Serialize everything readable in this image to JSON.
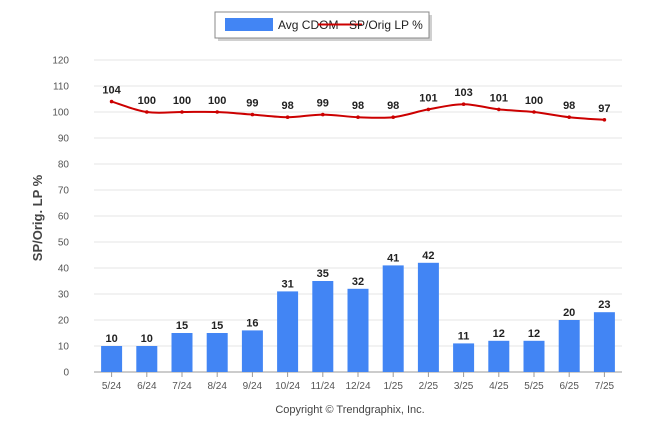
{
  "chart_data": {
    "type": "bar",
    "categories": [
      "5/24",
      "6/24",
      "7/24",
      "8/24",
      "9/24",
      "10/24",
      "11/24",
      "12/24",
      "1/25",
      "2/25",
      "3/25",
      "4/25",
      "5/25",
      "6/25",
      "7/25"
    ],
    "series": [
      {
        "name": "Avg CDOM",
        "type": "bar",
        "color": "#4285f4",
        "values": [
          10,
          10,
          15,
          15,
          16,
          31,
          35,
          32,
          41,
          42,
          11,
          12,
          12,
          20,
          23
        ]
      },
      {
        "name": "SP/Orig LP %",
        "type": "line",
        "color": "#cc0000",
        "values": [
          104,
          100,
          100,
          100,
          99,
          98,
          99,
          98,
          98,
          101,
          103,
          101,
          100,
          98,
          97
        ]
      }
    ],
    "ylabel": "SP/Orig. LP %",
    "ylim": [
      0,
      120
    ],
    "yticks": [
      0,
      10,
      20,
      30,
      40,
      50,
      60,
      70,
      80,
      90,
      100,
      110,
      120
    ],
    "grid": true,
    "legend_position": "top-center"
  },
  "copyright": "Copyright © Trendgraphix, Inc."
}
